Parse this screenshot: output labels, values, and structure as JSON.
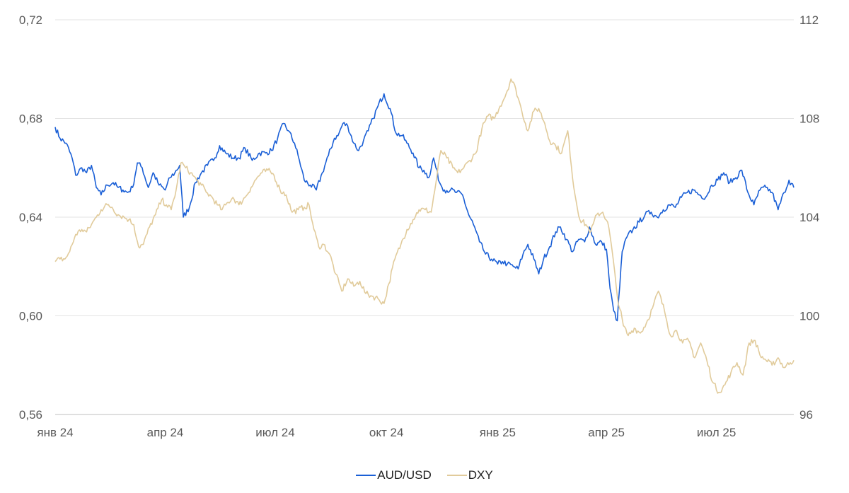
{
  "chart_data": {
    "type": "line",
    "title": "",
    "xlabel": "",
    "ylabel": "",
    "x_ticks": [
      "янв 24",
      "апр 24",
      "июл 24",
      "окт 24",
      "янв 25",
      "апр 25",
      "июл 25"
    ],
    "x_tick_dates": [
      "2024-01-01",
      "2024-04-01",
      "2024-07-01",
      "2024-10-01",
      "2025-01-01",
      "2025-04-01",
      "2025-07-01"
    ],
    "x_range": [
      "2024-01-01",
      "2025-09-03"
    ],
    "left_axis": {
      "ylim": [
        0.56,
        0.72
      ],
      "ticks": [
        "0,72",
        "0,68",
        "0,64",
        "0,60",
        "0,56"
      ],
      "tick_values": [
        0.72,
        0.68,
        0.64,
        0.6,
        0.56
      ]
    },
    "right_axis": {
      "ylim": [
        96,
        112
      ],
      "ticks": [
        "112",
        "108",
        "104",
        "100",
        "96"
      ],
      "tick_values": [
        112,
        108,
        104,
        100,
        96
      ]
    },
    "grid": "horizontal",
    "legend_position": "bottom-center",
    "series": [
      {
        "name": "AUD/USD",
        "axis": "left",
        "color": "#1a5fd6",
        "points": [
          [
            "2024-01-01",
            0.6765
          ],
          [
            "2024-01-05",
            0.672
          ],
          [
            "2024-01-10",
            0.67
          ],
          [
            "2024-01-15",
            0.664
          ],
          [
            "2024-01-18",
            0.657
          ],
          [
            "2024-01-23",
            0.66
          ],
          [
            "2024-01-27",
            0.658
          ],
          [
            "2024-01-31",
            0.661
          ],
          [
            "2024-02-04",
            0.652
          ],
          [
            "2024-02-08",
            0.649
          ],
          [
            "2024-02-13",
            0.653
          ],
          [
            "2024-02-18",
            0.654
          ],
          [
            "2024-02-22",
            0.652
          ],
          [
            "2024-02-26",
            0.651
          ],
          [
            "2024-03-01",
            0.65
          ],
          [
            "2024-03-05",
            0.652
          ],
          [
            "2024-03-09",
            0.662
          ],
          [
            "2024-03-13",
            0.66
          ],
          [
            "2024-03-18",
            0.652
          ],
          [
            "2024-03-22",
            0.658
          ],
          [
            "2024-03-27",
            0.653
          ],
          [
            "2024-04-01",
            0.651
          ],
          [
            "2024-04-05",
            0.656
          ],
          [
            "2024-04-09",
            0.658
          ],
          [
            "2024-04-13",
            0.661
          ],
          [
            "2024-04-16",
            0.64
          ],
          [
            "2024-04-21",
            0.644
          ],
          [
            "2024-04-26",
            0.654
          ],
          [
            "2024-05-01",
            0.658
          ],
          [
            "2024-05-06",
            0.661
          ],
          [
            "2024-05-12",
            0.664
          ],
          [
            "2024-05-16",
            0.669
          ],
          [
            "2024-05-21",
            0.666
          ],
          [
            "2024-05-27",
            0.664
          ],
          [
            "2024-06-01",
            0.664
          ],
          [
            "2024-06-06",
            0.668
          ],
          [
            "2024-06-12",
            0.663
          ],
          [
            "2024-06-18",
            0.666
          ],
          [
            "2024-06-23",
            0.666
          ],
          [
            "2024-06-28",
            0.667
          ],
          [
            "2024-07-03",
            0.672
          ],
          [
            "2024-07-08",
            0.678
          ],
          [
            "2024-07-12",
            0.675
          ],
          [
            "2024-07-17",
            0.67
          ],
          [
            "2024-07-21",
            0.663
          ],
          [
            "2024-07-25",
            0.655
          ],
          [
            "2024-07-30",
            0.653
          ],
          [
            "2024-08-04",
            0.651
          ],
          [
            "2024-08-09",
            0.658
          ],
          [
            "2024-08-14",
            0.665
          ],
          [
            "2024-08-19",
            0.672
          ],
          [
            "2024-08-22",
            0.673
          ],
          [
            "2024-08-26",
            0.678
          ],
          [
            "2024-08-30",
            0.677
          ],
          [
            "2024-09-04",
            0.67
          ],
          [
            "2024-09-08",
            0.667
          ],
          [
            "2024-09-12",
            0.671
          ],
          [
            "2024-09-16",
            0.675
          ],
          [
            "2024-09-20",
            0.68
          ],
          [
            "2024-09-24",
            0.685
          ],
          [
            "2024-09-29",
            0.69
          ],
          [
            "2024-10-04",
            0.684
          ],
          [
            "2024-10-09",
            0.674
          ],
          [
            "2024-10-14",
            0.673
          ],
          [
            "2024-10-18",
            0.67
          ],
          [
            "2024-10-23",
            0.666
          ],
          [
            "2024-10-28",
            0.66
          ],
          [
            "2024-11-01",
            0.659
          ],
          [
            "2024-11-05",
            0.656
          ],
          [
            "2024-11-09",
            0.664
          ],
          [
            "2024-11-14",
            0.654
          ],
          [
            "2024-11-18",
            0.651
          ],
          [
            "2024-11-23",
            0.651
          ],
          [
            "2024-11-28",
            0.65
          ],
          [
            "2024-12-03",
            0.649
          ],
          [
            "2024-12-08",
            0.641
          ],
          [
            "2024-12-12",
            0.637
          ],
          [
            "2024-12-17",
            0.63
          ],
          [
            "2024-12-22",
            0.625
          ],
          [
            "2024-12-27",
            0.623
          ],
          [
            "2025-01-01",
            0.621
          ],
          [
            "2025-01-05",
            0.622
          ],
          [
            "2025-01-09",
            0.621
          ],
          [
            "2025-01-14",
            0.62
          ],
          [
            "2025-01-18",
            0.619
          ],
          [
            "2025-01-22",
            0.625
          ],
          [
            "2025-01-26",
            0.629
          ],
          [
            "2025-01-31",
            0.623
          ],
          [
            "2025-02-04",
            0.617
          ],
          [
            "2025-02-08",
            0.623
          ],
          [
            "2025-02-13",
            0.628
          ],
          [
            "2025-02-18",
            0.634
          ],
          [
            "2025-02-22",
            0.636
          ],
          [
            "2025-02-27",
            0.631
          ],
          [
            "2025-03-04",
            0.626
          ],
          [
            "2025-03-09",
            0.631
          ],
          [
            "2025-03-14",
            0.63
          ],
          [
            "2025-03-18",
            0.636
          ],
          [
            "2025-03-23",
            0.629
          ],
          [
            "2025-03-28",
            0.63
          ],
          [
            "2025-04-01",
            0.627
          ],
          [
            "2025-04-04",
            0.611
          ],
          [
            "2025-04-07",
            0.602
          ],
          [
            "2025-04-10",
            0.598
          ],
          [
            "2025-04-14",
            0.626
          ],
          [
            "2025-04-18",
            0.632
          ],
          [
            "2025-04-23",
            0.635
          ],
          [
            "2025-04-28",
            0.638
          ],
          [
            "2025-05-03",
            0.641
          ],
          [
            "2025-05-08",
            0.642
          ],
          [
            "2025-05-13",
            0.64
          ],
          [
            "2025-05-18",
            0.643
          ],
          [
            "2025-05-23",
            0.645
          ],
          [
            "2025-05-28",
            0.644
          ],
          [
            "2025-06-02",
            0.648
          ],
          [
            "2025-06-07",
            0.65
          ],
          [
            "2025-06-12",
            0.651
          ],
          [
            "2025-06-17",
            0.649
          ],
          [
            "2025-06-22",
            0.648
          ],
          [
            "2025-06-27",
            0.653
          ],
          [
            "2025-07-02",
            0.655
          ],
          [
            "2025-07-07",
            0.658
          ],
          [
            "2025-07-12",
            0.654
          ],
          [
            "2025-07-17",
            0.656
          ],
          [
            "2025-07-22",
            0.659
          ],
          [
            "2025-07-27",
            0.65
          ],
          [
            "2025-08-01",
            0.645
          ],
          [
            "2025-08-06",
            0.651
          ],
          [
            "2025-08-11",
            0.652
          ],
          [
            "2025-08-16",
            0.65
          ],
          [
            "2025-08-21",
            0.643
          ],
          [
            "2025-08-26",
            0.65
          ],
          [
            "2025-08-30",
            0.655
          ],
          [
            "2025-09-03",
            0.652
          ]
        ]
      },
      {
        "name": "DXY",
        "axis": "right",
        "color": "#e1cb9b",
        "points": [
          [
            "2024-01-01",
            102.2
          ],
          [
            "2024-01-05",
            102.3
          ],
          [
            "2024-01-09",
            102.3
          ],
          [
            "2024-01-13",
            102.6
          ],
          [
            "2024-01-18",
            103.3
          ],
          [
            "2024-01-23",
            103.5
          ],
          [
            "2024-01-27",
            103.4
          ],
          [
            "2024-01-31",
            103.7
          ],
          [
            "2024-02-04",
            104.0
          ],
          [
            "2024-02-08",
            104.3
          ],
          [
            "2024-02-13",
            104.5
          ],
          [
            "2024-02-17",
            104.4
          ],
          [
            "2024-02-22",
            104.1
          ],
          [
            "2024-02-27",
            104.0
          ],
          [
            "2024-03-02",
            103.9
          ],
          [
            "2024-03-06",
            103.7
          ],
          [
            "2024-03-10",
            102.8
          ],
          [
            "2024-03-14",
            102.9
          ],
          [
            "2024-03-19",
            103.6
          ],
          [
            "2024-03-24",
            104.1
          ],
          [
            "2024-03-29",
            104.7
          ],
          [
            "2024-04-02",
            104.5
          ],
          [
            "2024-04-06",
            104.3
          ],
          [
            "2024-04-10",
            105.1
          ],
          [
            "2024-04-14",
            106.2
          ],
          [
            "2024-04-18",
            106.0
          ],
          [
            "2024-04-22",
            105.8
          ],
          [
            "2024-04-27",
            105.5
          ],
          [
            "2024-05-01",
            105.3
          ],
          [
            "2024-05-05",
            105.0
          ],
          [
            "2024-05-10",
            104.8
          ],
          [
            "2024-05-14",
            104.5
          ],
          [
            "2024-05-18",
            104.3
          ],
          [
            "2024-05-23",
            104.6
          ],
          [
            "2024-05-27",
            104.8
          ],
          [
            "2024-06-01",
            104.5
          ],
          [
            "2024-06-06",
            104.8
          ],
          [
            "2024-06-11",
            105.2
          ],
          [
            "2024-06-16",
            105.6
          ],
          [
            "2024-06-20",
            105.8
          ],
          [
            "2024-06-25",
            105.9
          ],
          [
            "2024-06-30",
            105.7
          ],
          [
            "2024-07-05",
            105.1
          ],
          [
            "2024-07-10",
            104.9
          ],
          [
            "2024-07-15",
            104.2
          ],
          [
            "2024-07-20",
            104.3
          ],
          [
            "2024-07-25",
            104.4
          ],
          [
            "2024-07-29",
            104.5
          ],
          [
            "2024-08-02",
            103.5
          ],
          [
            "2024-08-06",
            102.8
          ],
          [
            "2024-08-10",
            102.9
          ],
          [
            "2024-08-15",
            102.5
          ],
          [
            "2024-08-20",
            101.7
          ],
          [
            "2024-08-25",
            101.0
          ],
          [
            "2024-08-30",
            101.5
          ],
          [
            "2024-09-04",
            101.2
          ],
          [
            "2024-09-09",
            101.4
          ],
          [
            "2024-09-14",
            100.9
          ],
          [
            "2024-09-19",
            100.8
          ],
          [
            "2024-09-24",
            100.7
          ],
          [
            "2024-09-29",
            100.5
          ],
          [
            "2024-10-03",
            101.3
          ],
          [
            "2024-10-08",
            102.3
          ],
          [
            "2024-10-13",
            102.9
          ],
          [
            "2024-10-18",
            103.5
          ],
          [
            "2024-10-23",
            103.9
          ],
          [
            "2024-10-28",
            104.3
          ],
          [
            "2024-11-02",
            104.3
          ],
          [
            "2024-11-07",
            104.2
          ],
          [
            "2024-11-11",
            105.4
          ],
          [
            "2024-11-15",
            106.7
          ],
          [
            "2024-11-20",
            106.4
          ],
          [
            "2024-11-25",
            106.0
          ],
          [
            "2024-11-29",
            105.8
          ],
          [
            "2024-12-04",
            106.0
          ],
          [
            "2024-12-09",
            106.3
          ],
          [
            "2024-12-14",
            106.6
          ],
          [
            "2024-12-19",
            107.6
          ],
          [
            "2024-12-24",
            108.1
          ],
          [
            "2024-12-29",
            108.0
          ],
          [
            "2025-01-03",
            108.5
          ],
          [
            "2025-01-08",
            109.0
          ],
          [
            "2025-01-12",
            109.6
          ],
          [
            "2025-01-16",
            109.2
          ],
          [
            "2025-01-21",
            108.3
          ],
          [
            "2025-01-26",
            107.5
          ],
          [
            "2025-01-31",
            108.3
          ],
          [
            "2025-02-04",
            108.4
          ],
          [
            "2025-02-09",
            107.8
          ],
          [
            "2025-02-13",
            107.1
          ],
          [
            "2025-02-18",
            106.9
          ],
          [
            "2025-02-23",
            106.6
          ],
          [
            "2025-02-28",
            107.5
          ],
          [
            "2025-03-05",
            105.2
          ],
          [
            "2025-03-10",
            103.9
          ],
          [
            "2025-03-15",
            103.7
          ],
          [
            "2025-03-19",
            103.4
          ],
          [
            "2025-03-24",
            104.1
          ],
          [
            "2025-03-29",
            104.2
          ],
          [
            "2025-04-02",
            103.8
          ],
          [
            "2025-04-05",
            102.9
          ],
          [
            "2025-04-10",
            100.8
          ],
          [
            "2025-04-15",
            99.6
          ],
          [
            "2025-04-19",
            99.2
          ],
          [
            "2025-04-24",
            99.5
          ],
          [
            "2025-04-29",
            99.3
          ],
          [
            "2025-05-04",
            99.7
          ],
          [
            "2025-05-09",
            100.3
          ],
          [
            "2025-05-14",
            101.0
          ],
          [
            "2025-05-19",
            100.2
          ],
          [
            "2025-05-24",
            99.2
          ],
          [
            "2025-05-29",
            99.4
          ],
          [
            "2025-06-03",
            98.9
          ],
          [
            "2025-06-08",
            99.0
          ],
          [
            "2025-06-13",
            98.3
          ],
          [
            "2025-06-18",
            98.9
          ],
          [
            "2025-06-23",
            98.2
          ],
          [
            "2025-06-28",
            97.3
          ],
          [
            "2025-07-03",
            96.9
          ],
          [
            "2025-07-08",
            97.2
          ],
          [
            "2025-07-13",
            97.7
          ],
          [
            "2025-07-18",
            98.1
          ],
          [
            "2025-07-23",
            97.6
          ],
          [
            "2025-07-28",
            98.9
          ],
          [
            "2025-08-02",
            99.0
          ],
          [
            "2025-08-06",
            98.4
          ],
          [
            "2025-08-11",
            98.2
          ],
          [
            "2025-08-16",
            98.0
          ],
          [
            "2025-08-21",
            98.3
          ],
          [
            "2025-08-26",
            97.9
          ],
          [
            "2025-08-31",
            98.1
          ],
          [
            "2025-09-03",
            98.2
          ]
        ]
      }
    ]
  }
}
